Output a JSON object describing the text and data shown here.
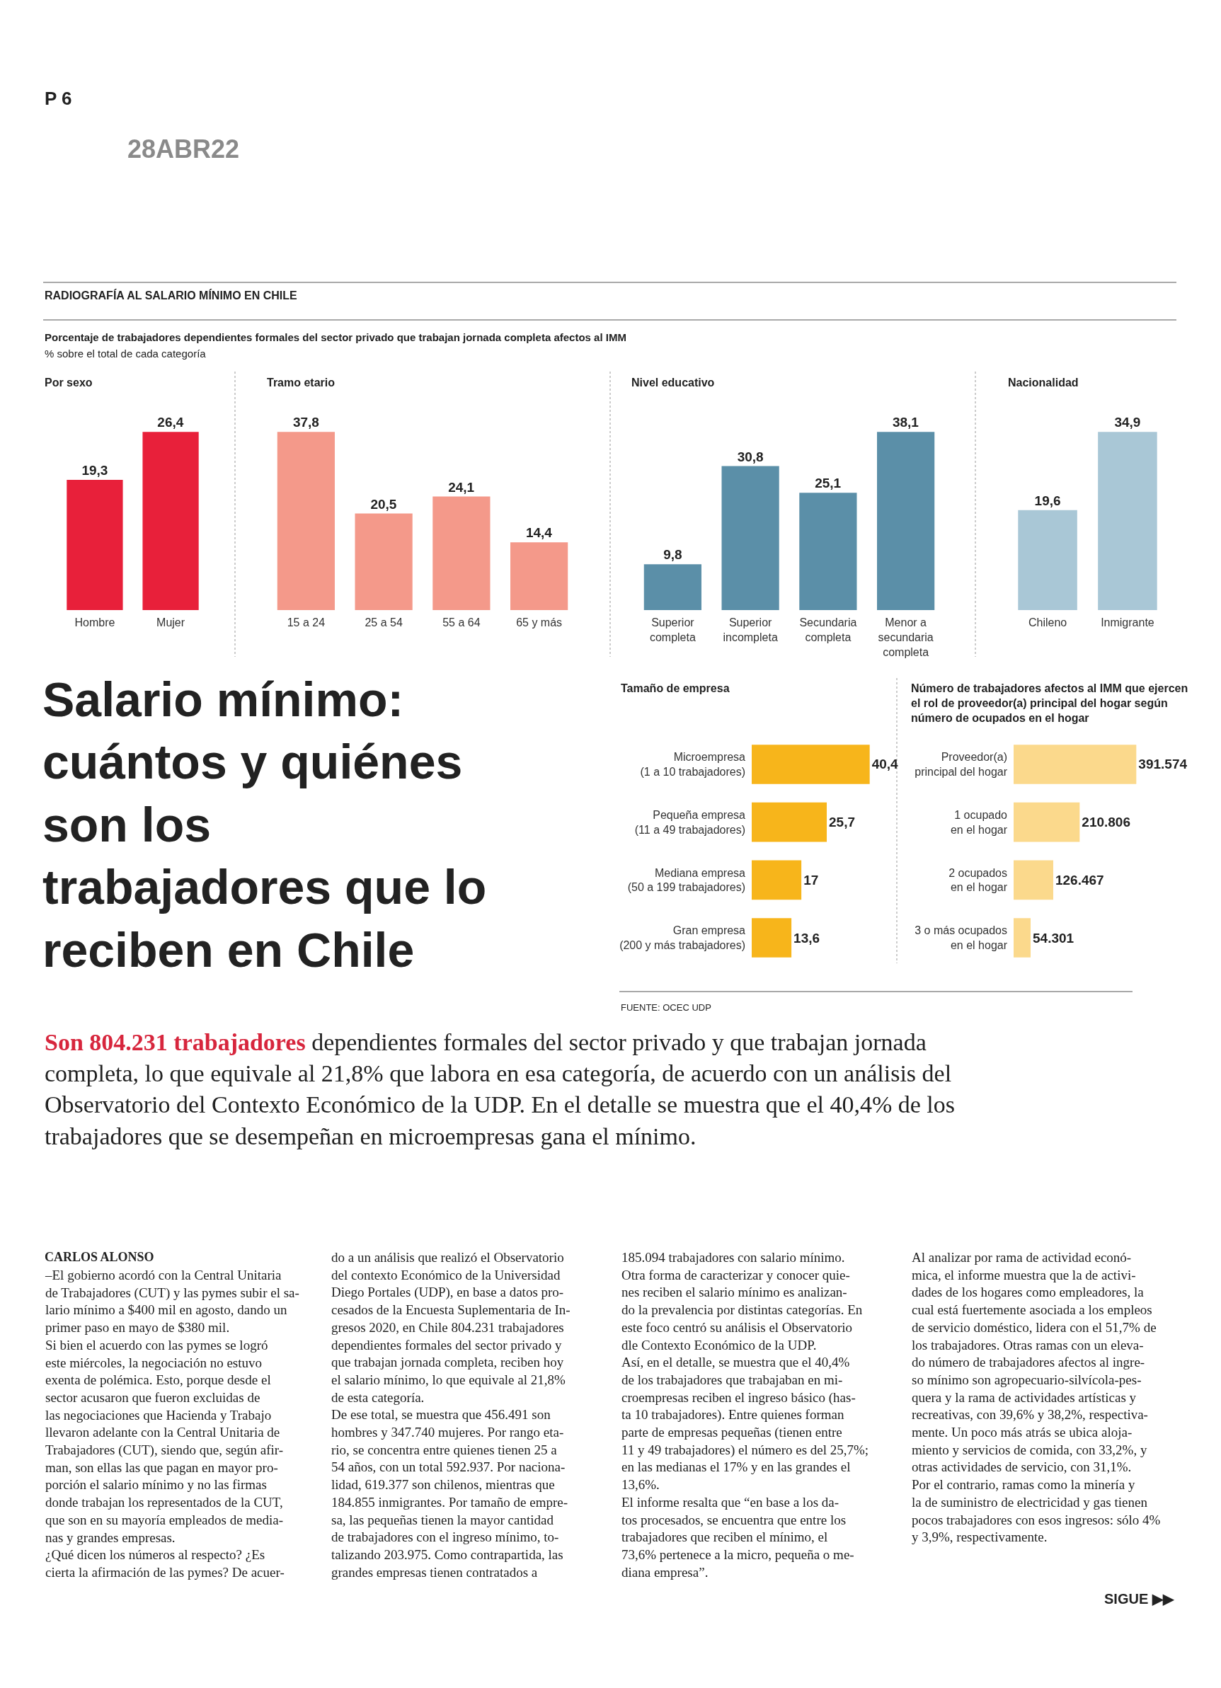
{
  "chart_data": [
    {
      "type": "bar",
      "title": "Por sexo",
      "categories": [
        "Hombre",
        "Mujer"
      ],
      "values": [
        19.3,
        26.4
      ],
      "color": "#e8203a",
      "value_labels": [
        "19,3",
        "26,4"
      ],
      "tick_labels": "x"
    },
    {
      "type": "bar",
      "title": "Tramo etario",
      "categories": [
        "15 a 24",
        "25 a 54",
        "55 a 64",
        "65 y más"
      ],
      "values": [
        37.8,
        20.5,
        24.1,
        14.4
      ],
      "color": "#f4998a",
      "value_labels": [
        "37,8",
        "20,5",
        "24,1",
        "14,4"
      ],
      "tick_labels": "x"
    },
    {
      "type": "bar",
      "title": "Nivel educativo",
      "categories": [
        "Superior\ncompleta",
        "Superior\nincompleta",
        "Secundaria\ncompleta",
        "Menor a\nsecundaria\ncompleta"
      ],
      "values": [
        9.8,
        30.8,
        25.1,
        38.1
      ],
      "color": "#5b8fa8",
      "value_labels": [
        "9,8",
        "30,8",
        "25,1",
        "38,1"
      ],
      "tick_labels": "x"
    },
    {
      "type": "bar",
      "title": "Nacionalidad",
      "categories": [
        "Chileno",
        "Inmigrante"
      ],
      "values": [
        19.6,
        34.9
      ],
      "color": "#a9c7d6",
      "value_labels": [
        "19,6",
        "34,9"
      ],
      "tick_labels": "x"
    },
    {
      "type": "bar",
      "orientation": "horizontal",
      "title": "Tamaño de empresa",
      "categories": [
        "Microempresa\n(1 a 10 trabajadores)",
        "Pequeña empresa\n(11 a 49 trabajadores)",
        "Mediana empresa\n(50 a 199 trabajadores)",
        "Gran empresa\n(200 y más trabajadores)"
      ],
      "values": [
        40.4,
        25.7,
        17,
        13.6
      ],
      "color": "#f7b51b",
      "value_labels": [
        "40,4",
        "25,7",
        "17",
        "13,6"
      ],
      "tick_labels": "y"
    },
    {
      "type": "bar",
      "orientation": "horizontal",
      "title": "Número de trabajadores afectos al IMM que ejercen\nel rol de proveedor(a) principal del hogar según\nnúmero de ocupados en el hogar",
      "categories": [
        "Proveedor(a)\nprincipal del hogar",
        "1 ocupado\nen el hogar",
        "2 ocupados\nen el hogar",
        "3 o más ocupados\nen el hogar"
      ],
      "values": [
        391574,
        210806,
        126467,
        54301
      ],
      "color": "#fbd98c",
      "value_labels": [
        "391.574",
        "210.806",
        "126.467",
        "54.301"
      ],
      "tick_labels": "y"
    },
    {
      "type": "other",
      "title": "Salario mínimo:\ncuántos y quiénes\nson los\ntrabajadores que lo\nreciben en Chile",
      "annotations": [
        "P 6",
        "28ABR22",
        "RADIOGRAFÍA AL SALARIO MÍNIMO EN CHILE",
        "Porcentaje de trabajadores dependientes formales del sector privado que trabajan jornada completa afectos al IMM",
        "% sobre el total de cada categoría",
        "Son 804.231 trabajadores",
        "dependientes formales del sector privado y que trabajan jornada\ncompleta, lo que equivale al 21,8% que labora en esa categoría, de acuerdo con un análisis del\nObservatorio del Contexto Económico de la UDP. En el detalle se muestra que el 40,4% de los\ntrabajadores que se desempeñan en microempresas gana el mínimo.",
        "FUENTE: OCEC UDP",
        "CARLOS ALONSO",
        "–El gobierno acordó con la Central Unitaria\nde Trabajadores (CUT) y las pymes subir el sa-\nlario mínimo a $400 mil en agosto, dando un\nprimer paso en mayo de $380 mil.\nSi bien el acuerdo con las pymes se logró\neste miércoles, la negociación no estuvo\nexenta de polémica. Esto, porque desde el\nsector acusaron que fueron excluidas de\nlas negociaciones que Hacienda y Trabajo\nllevaron adelante con la Central Unitaria de\nTrabajadores (CUT), siendo que, según afir-\nman, son ellas las que pagan en mayor pro-\nporción el salario mínimo y no las firmas\ndonde trabajan los representados de la CUT,\nque son en su mayoría empleados de media-\nnas y grandes empresas.\n¿Qué dicen los números al respecto? ¿Es\ncierta la afirmación de las pymes? De acuer-",
        "do a un análisis que realizó el Observatorio\ndel contexto Económico de la Universidad\nDiego Portales (UDP), en base a datos pro-\ncesados de la Encuesta Suplementaria de In-\ngresos 2020, en Chile 804.231 trabajadores\ndependientes formales del sector privado y\nque trabajan jornada completa, reciben hoy\nel salario mínimo, lo que equivale al 21,8%\nde esta categoría.\nDe ese total, se muestra que 456.491 son\nhombres y 347.740 mujeres. Por rango eta-\nrio, se concentra entre quienes tienen 25 a\n54 años, con un total 592.937. Por naciona-\nlidad, 619.377 son chilenos, mientras que\n184.855 inmigrantes. Por tamaño de empre-\nsa, las pequeñas tienen la mayor cantidad\nde trabajadores con el ingreso mínimo, to-\ntalizando 203.975. Como contrapartida, las\ngrandes empresas tienen contratados a",
        "185.094 trabajadores con salario mínimo.\nOtra forma de caracterizar y conocer quie-\nnes reciben el salario mínimo es analizan-\ndo la prevalencia por distintas categorías. En\neste foco centró su análisis el Observatorio\ndle Contexto Económico de la UDP.\nAsí, en el detalle, se muestra que el 40,4%\nde los trabajadores que trabajaban en mi-\ncroempresas reciben el ingreso básico (has-\nta 10 trabajadores). Entre quienes forman\nparte de empresas pequeñas (tienen entre\n11 y 49 trabajadores) el número es del 25,7%;\nen las medianas el 17% y en las grandes el\n13,6%.\nEl informe resalta que “en base a los da-\ntos procesados, se encuentra que entre los\ntrabajadores que reciben el mínimo, el\n73,6% pertenece a la micro, pequeña o me-\ndiana empresa”.",
        "Al analizar por rama de actividad econó-\nmica, el informe muestra que la de activi-\ndades de los hogares como empleadores, la\ncual está fuertemente asociada a los empleos\nde servicio doméstico, lidera con el 51,7% de\nlos trabajadores. Otras ramas con un eleva-\ndo número de trabajadores afectos al ingre-\nso mínimo son agropecuario-silvícola-pes-\nquera y la rama de actividades artísticas y\nrecreativas, con 39,6% y 38,2%, respectiva-\nmente. Un poco más atrás se ubica aloja-\nmiento y servicios de comida, con 33,2%, y\notras actividades de servicio, con 31,1%.\nPor el contrario, ramas como la minería y\nla de suministro de electricidad y gas tienen\npocos trabajadores con esos ingresos: sólo 4%\ny 3,9%, respectivamente.",
        "SIGUE ▶▶"
      ]
    }
  ]
}
